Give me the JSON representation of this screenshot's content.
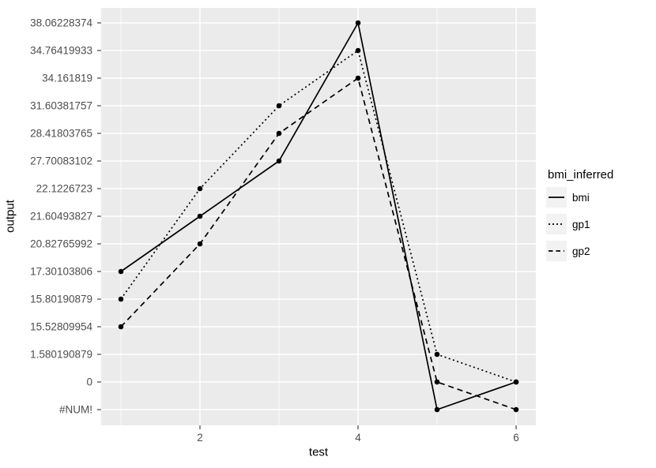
{
  "chart_data": {
    "type": "line",
    "title": "",
    "xlabel": "test",
    "ylabel": "output",
    "legend_title": "bmi_inferred",
    "legend_position": "right",
    "grid": true,
    "y_type": "discrete",
    "x": [
      1,
      2,
      3,
      4,
      5,
      6
    ],
    "xticks": [
      "2",
      "4",
      "6"
    ],
    "x_minor": [
      1,
      3,
      5
    ],
    "x_range": [
      0.75,
      6.25
    ],
    "y_categories": [
      "#NUM!",
      "0",
      "1.580190879",
      "15.52809954",
      "15.80190879",
      "17.30103806",
      "20.82765992",
      "21.60493827",
      "22.1226723",
      "27.70083102",
      "28.41803765",
      "31.60381757",
      "34.161819",
      "34.76419933",
      "38.06228374"
    ],
    "series": [
      {
        "name": "bmi",
        "linetype": "solid",
        "values": [
          "17.30103806",
          "21.60493827",
          "27.70083102",
          "38.06228374",
          "#NUM!",
          "0"
        ]
      },
      {
        "name": "gp1",
        "linetype": "dotted",
        "values": [
          "15.80190879",
          "22.1226723",
          "31.60381757",
          "34.76419933",
          "1.580190879",
          "0"
        ]
      },
      {
        "name": "gp2",
        "linetype": "dashed",
        "values": [
          "15.52809954",
          "20.82765992",
          "28.41803765",
          "34.161819",
          "0",
          "#NUM!"
        ]
      }
    ],
    "colors": {
      "background": "#FFFFFF",
      "panel_bg": "#EBEBEB",
      "grid": "#FFFFFF",
      "line": "#000000",
      "tick_mark": "#333333",
      "tick_label": "#4D4D4D",
      "axis_title": "#000000",
      "legend_key_bg": "#F2F2F2"
    }
  }
}
